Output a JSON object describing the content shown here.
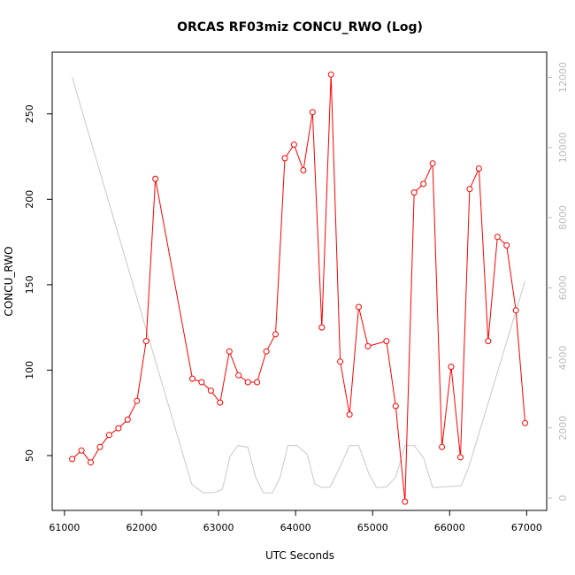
{
  "chart_data": {
    "type": "line",
    "title": "ORCAS RF03miz CONCU_RWO (Log)",
    "xlabel": "UTC Seconds",
    "ylabel": "CONCU_RWO",
    "xlim": [
      60840,
      67260
    ],
    "ylim": [
      17.9,
      286.1
    ],
    "y2lim": [
      -352,
      12720
    ],
    "grid": false,
    "x_ticks": [
      61000,
      62000,
      63000,
      64000,
      65000,
      66000,
      67000
    ],
    "y_ticks": [
      50,
      100,
      150,
      200,
      250
    ],
    "y2_ticks": [
      0,
      2000,
      4000,
      6000,
      8000,
      10000,
      12000
    ],
    "series": [
      {
        "axis": "left",
        "color": "#ff0000",
        "markers": "open-circle",
        "x": [
          61100,
          61220,
          61340,
          61460,
          61580,
          61700,
          61820,
          61940,
          62060,
          62180,
          62660,
          62780,
          62900,
          63020,
          63140,
          63260,
          63380,
          63500,
          63620,
          63740,
          63860,
          63980,
          64100,
          64220,
          64340,
          64460,
          64580,
          64700,
          64820,
          64940,
          65180,
          65300,
          65420,
          65540,
          65660,
          65780,
          65900,
          66020,
          66140,
          66260,
          66380,
          66500,
          66620,
          66740,
          66860,
          66980
        ],
        "values": [
          48,
          53,
          46,
          55,
          62,
          66,
          71,
          82,
          117,
          212,
          95,
          93,
          88,
          81,
          111,
          97,
          93,
          93,
          111,
          121,
          224,
          232,
          217,
          251,
          125,
          273,
          105,
          74,
          137,
          114,
          117,
          79,
          23,
          204,
          209,
          221,
          55,
          102,
          49,
          206,
          218,
          117,
          178,
          173,
          135,
          69
        ]
      },
      {
        "axis": "right",
        "color": "#c8c8c8",
        "markers": "none",
        "x": [
          61100,
          62650,
          62800,
          62950,
          63050,
          63150,
          63250,
          63380,
          63480,
          63580,
          63700,
          63800,
          63900,
          64020,
          64150,
          64250,
          64350,
          64450,
          64580,
          64700,
          64820,
          64950,
          65050,
          65180,
          65300,
          65420,
          65540,
          65660,
          65780,
          65900,
          66150,
          66250,
          66980
        ],
        "values": [
          12000,
          400,
          150,
          160,
          250,
          1200,
          1500,
          1450,
          600,
          150,
          150,
          600,
          1500,
          1500,
          1250,
          400,
          300,
          320,
          900,
          1500,
          1500,
          700,
          300,
          320,
          600,
          1500,
          1500,
          1150,
          300,
          320,
          350,
          900,
          6200
        ]
      }
    ]
  }
}
